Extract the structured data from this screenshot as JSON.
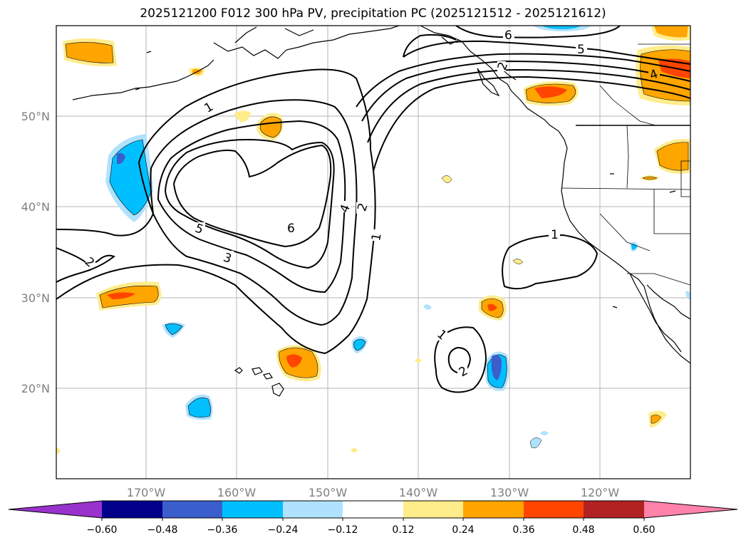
{
  "title": "2025121200 F012 300 hPa PV, precipitation PC (2025121512 - 2025121612)",
  "map": {
    "lon_labels": [
      "170°W",
      "160°W",
      "150°W",
      "140°W",
      "130°W",
      "120°W"
    ],
    "lat_labels": [
      "50°N",
      "40°N",
      "30°N",
      "20°N"
    ],
    "contour_labels": [
      "1",
      "2",
      "3",
      "4",
      "5",
      "6",
      "1",
      "2",
      "5",
      "6",
      "4",
      "1",
      "1",
      "2",
      "2"
    ]
  },
  "colorbar": {
    "tick_labels": [
      "−0.60",
      "−0.48",
      "−0.36",
      "−0.24",
      "−0.12",
      "0.12",
      "0.24",
      "0.36",
      "0.48",
      "0.60"
    ],
    "colors": [
      "#9932cc",
      "#00008b",
      "#3a5fcd",
      "#00bfff",
      "#b0e2ff",
      "#ffffff",
      "#ffec8b",
      "#ffa500",
      "#ff4500",
      "#b22222",
      "#ff82ab"
    ]
  }
}
